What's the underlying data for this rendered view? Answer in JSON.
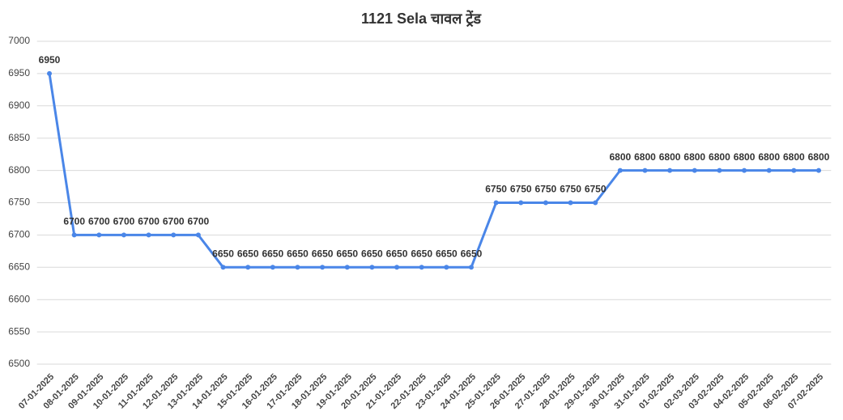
{
  "chart_data": {
    "type": "line",
    "title": "1121 Sela चावल ट्रेंड",
    "title_color": "#ff0000",
    "categories": [
      "07-01-2025",
      "08-01-2025",
      "09-01-2025",
      "10-01-2025",
      "11-01-2025",
      "12-01-2025",
      "13-01-2025",
      "14-01-2025",
      "15-01-2025",
      "16-01-2025",
      "17-01-2025",
      "18-01-2025",
      "19-01-2025",
      "20-01-2025",
      "21-01-2025",
      "22-01-2025",
      "23-01-2025",
      "24-01-2025",
      "25-01-2025",
      "26-01-2025",
      "27-01-2025",
      "28-01-2025",
      "29-01-2025",
      "30-01-2025",
      "31-01-2025",
      "01-02-2025",
      "02-03-2025",
      "03-02-2025",
      "04-02-2025",
      "05-02-2025",
      "06-02-2025",
      "07-02-2025"
    ],
    "values": [
      6950,
      6700,
      6700,
      6700,
      6700,
      6700,
      6700,
      6650,
      6650,
      6650,
      6650,
      6650,
      6650,
      6650,
      6650,
      6650,
      6650,
      6650,
      6750,
      6750,
      6750,
      6750,
      6750,
      6800,
      6800,
      6800,
      6800,
      6800,
      6800,
      6800,
      6800,
      6800
    ],
    "color": "#4a86e8",
    "ylim": [
      6500,
      7000
    ],
    "yticks": [
      6500,
      6550,
      6600,
      6650,
      6700,
      6750,
      6800,
      6850,
      6900,
      6950,
      7000
    ],
    "grid": true
  }
}
